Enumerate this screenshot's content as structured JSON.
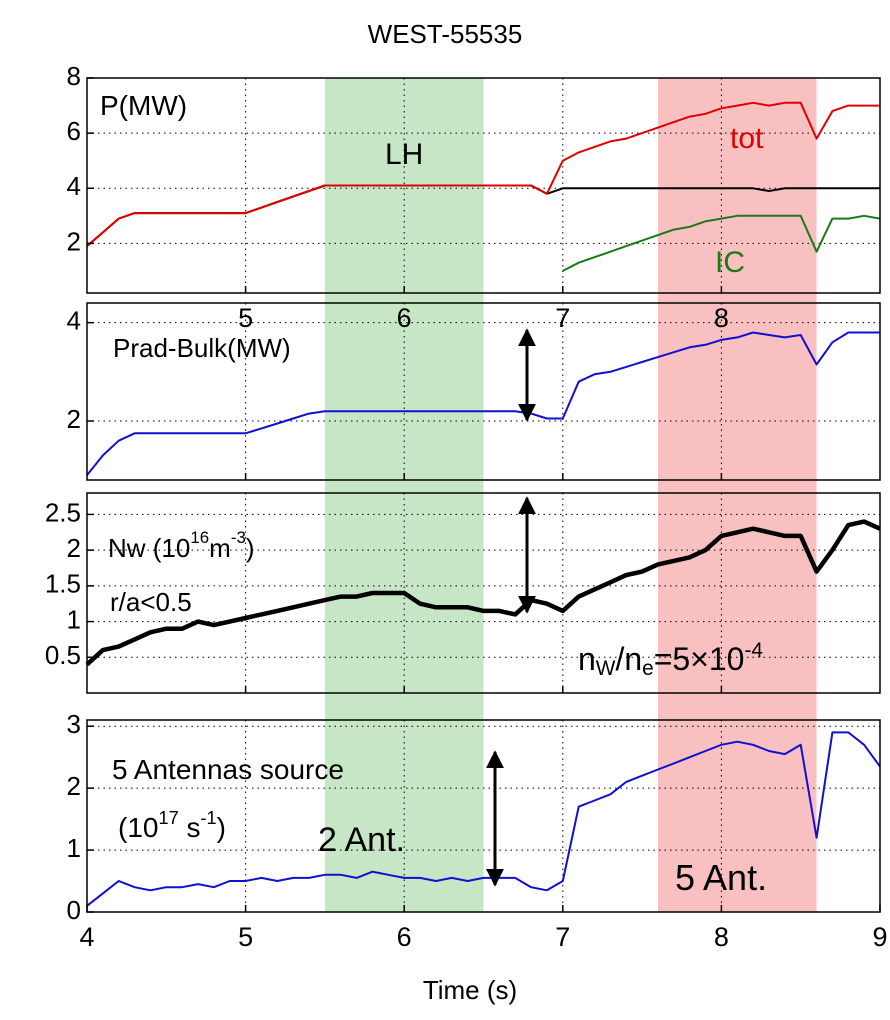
{
  "chart_data": {
    "type": "line",
    "title": "WEST-55535",
    "xlabel": "Time (s)",
    "xlim": [
      4,
      9
    ],
    "x": [
      4.0,
      4.1,
      4.2,
      4.3,
      4.4,
      4.5,
      4.6,
      4.7,
      4.8,
      4.9,
      5.0,
      5.1,
      5.2,
      5.3,
      5.4,
      5.5,
      5.6,
      5.7,
      5.8,
      5.9,
      6.0,
      6.1,
      6.2,
      6.3,
      6.4,
      6.5,
      6.6,
      6.7,
      6.8,
      6.9,
      7.0,
      7.1,
      7.2,
      7.3,
      7.4,
      7.5,
      7.6,
      7.7,
      7.8,
      7.9,
      8.0,
      8.1,
      8.2,
      8.3,
      8.4,
      8.5,
      8.6,
      8.7,
      8.8,
      8.9,
      9.0
    ],
    "shaded_regions": [
      {
        "x": [
          5.5,
          6.5
        ],
        "color": "#c6e6c6"
      },
      {
        "x": [
          7.6,
          8.6
        ],
        "color": "#f8c0c0"
      }
    ],
    "grid": true,
    "panels": [
      {
        "ylim": [
          0.2,
          8
        ],
        "yticks": [
          2,
          4,
          6,
          8
        ],
        "xticks": [
          5,
          6,
          7,
          8
        ],
        "xtick_labels": true,
        "annotations": [
          [
            "P(MW)"
          ]
        ],
        "series": [
          {
            "name": "LH",
            "color": "#000000",
            "values": [
              1.9,
              2.4,
              2.9,
              3.1,
              3.1,
              3.1,
              3.1,
              3.1,
              3.1,
              3.1,
              3.1,
              3.3,
              3.5,
              3.7,
              3.9,
              4.1,
              4.1,
              4.1,
              4.1,
              4.1,
              4.1,
              4.1,
              4.1,
              4.1,
              4.1,
              4.1,
              4.1,
              4.1,
              4.1,
              3.8,
              4.0,
              4.0,
              4.0,
              4.0,
              4.0,
              4.0,
              4.0,
              4.0,
              4.0,
              4.0,
              4.0,
              4.0,
              4.0,
              3.9,
              4.0,
              4.0,
              4.0,
              4.0,
              4.0,
              4.0,
              4.0
            ]
          },
          {
            "name": "tot",
            "color": "#e00000",
            "values": [
              1.9,
              2.4,
              2.9,
              3.1,
              3.1,
              3.1,
              3.1,
              3.1,
              3.1,
              3.1,
              3.1,
              3.3,
              3.5,
              3.7,
              3.9,
              4.1,
              4.1,
              4.1,
              4.1,
              4.1,
              4.1,
              4.1,
              4.1,
              4.1,
              4.1,
              4.1,
              4.1,
              4.1,
              4.1,
              3.8,
              5.0,
              5.3,
              5.5,
              5.7,
              5.8,
              6.0,
              6.2,
              6.4,
              6.6,
              6.7,
              6.9,
              7.0,
              7.1,
              7.0,
              7.1,
              7.1,
              5.8,
              6.8,
              7.0,
              7.0,
              7.0
            ]
          },
          {
            "name": "IC",
            "color": "#1a7a1a",
            "values": [
              null,
              null,
              null,
              null,
              null,
              null,
              null,
              null,
              null,
              null,
              null,
              null,
              null,
              null,
              null,
              null,
              null,
              null,
              null,
              null,
              null,
              null,
              null,
              null,
              null,
              null,
              null,
              null,
              null,
              null,
              1.0,
              1.3,
              1.5,
              1.7,
              1.9,
              2.1,
              2.3,
              2.5,
              2.6,
              2.8,
              2.9,
              3.0,
              3.0,
              3.0,
              3.0,
              3.0,
              1.7,
              2.9,
              2.9,
              3.0,
              2.9
            ]
          }
        ]
      },
      {
        "ylim": [
          0.8,
          4.4
        ],
        "yticks": [
          2,
          4
        ],
        "xticks": [
          5,
          6,
          7,
          8
        ],
        "xtick_labels": false,
        "annotations": [
          [
            "Prad-Bulk(MW)"
          ]
        ],
        "series": [
          {
            "name": "Prad-Bulk",
            "color": "#1010d0",
            "values": [
              0.9,
              1.3,
              1.6,
              1.75,
              1.75,
              1.75,
              1.75,
              1.75,
              1.75,
              1.75,
              1.75,
              1.85,
              1.95,
              2.05,
              2.15,
              2.2,
              2.2,
              2.2,
              2.2,
              2.2,
              2.2,
              2.2,
              2.2,
              2.2,
              2.2,
              2.2,
              2.2,
              2.2,
              2.15,
              2.05,
              2.05,
              2.8,
              2.95,
              3.0,
              3.1,
              3.2,
              3.3,
              3.4,
              3.5,
              3.55,
              3.65,
              3.7,
              3.8,
              3.75,
              3.7,
              3.75,
              3.15,
              3.6,
              3.8,
              3.8,
              3.8
            ]
          }
        ]
      },
      {
        "ylim": [
          0,
          2.8
        ],
        "yticks": [
          0.5,
          1,
          1.5,
          2,
          2.5
        ],
        "xticks": [
          5,
          6,
          7,
          8
        ],
        "xtick_labels": false,
        "annotations": [
          [
            "Nw (10",
            "16",
            "m",
            "-3",
            ")"
          ],
          [
            "r/a<0.5"
          ],
          [
            "n",
            "W",
            "/n",
            "e",
            "=5×10",
            "-4"
          ]
        ],
        "series": [
          {
            "name": "Nw",
            "color": "#000000",
            "values": [
              0.4,
              0.6,
              0.65,
              0.75,
              0.85,
              0.9,
              0.9,
              1.0,
              0.95,
              1.0,
              1.05,
              1.1,
              1.15,
              1.2,
              1.25,
              1.3,
              1.35,
              1.35,
              1.4,
              1.4,
              1.4,
              1.25,
              1.2,
              1.2,
              1.2,
              1.15,
              1.15,
              1.1,
              1.3,
              1.25,
              1.15,
              1.35,
              1.45,
              1.55,
              1.65,
              1.7,
              1.8,
              1.85,
              1.9,
              2.0,
              2.2,
              2.25,
              2.3,
              2.25,
              2.2,
              2.2,
              1.7,
              2.0,
              2.35,
              2.4,
              2.3
            ]
          }
        ]
      },
      {
        "ylim": [
          0,
          3.1
        ],
        "yticks": [
          0,
          1,
          2,
          3
        ],
        "xticks": [
          4,
          5,
          6,
          7,
          8,
          9
        ],
        "xtick_labels": true,
        "annotations": [
          [
            "5 Antennas source"
          ],
          [
            "(10",
            "17",
            " s",
            "-1",
            ")"
          ],
          [
            "2 Ant."
          ],
          [
            "5 Ant."
          ]
        ],
        "series": [
          {
            "name": "source",
            "color": "#1010d0",
            "values": [
              0.1,
              0.3,
              0.5,
              0.4,
              0.35,
              0.4,
              0.4,
              0.45,
              0.4,
              0.5,
              0.5,
              0.55,
              0.5,
              0.55,
              0.55,
              0.6,
              0.6,
              0.55,
              0.65,
              0.6,
              0.55,
              0.55,
              0.5,
              0.55,
              0.5,
              0.55,
              0.55,
              0.55,
              0.4,
              0.35,
              0.5,
              1.7,
              1.8,
              1.9,
              2.1,
              2.2,
              2.3,
              2.4,
              2.5,
              2.6,
              2.7,
              2.75,
              2.7,
              2.6,
              2.55,
              2.7,
              1.2,
              2.9,
              2.9,
              2.7,
              2.35
            ]
          }
        ]
      }
    ]
  }
}
